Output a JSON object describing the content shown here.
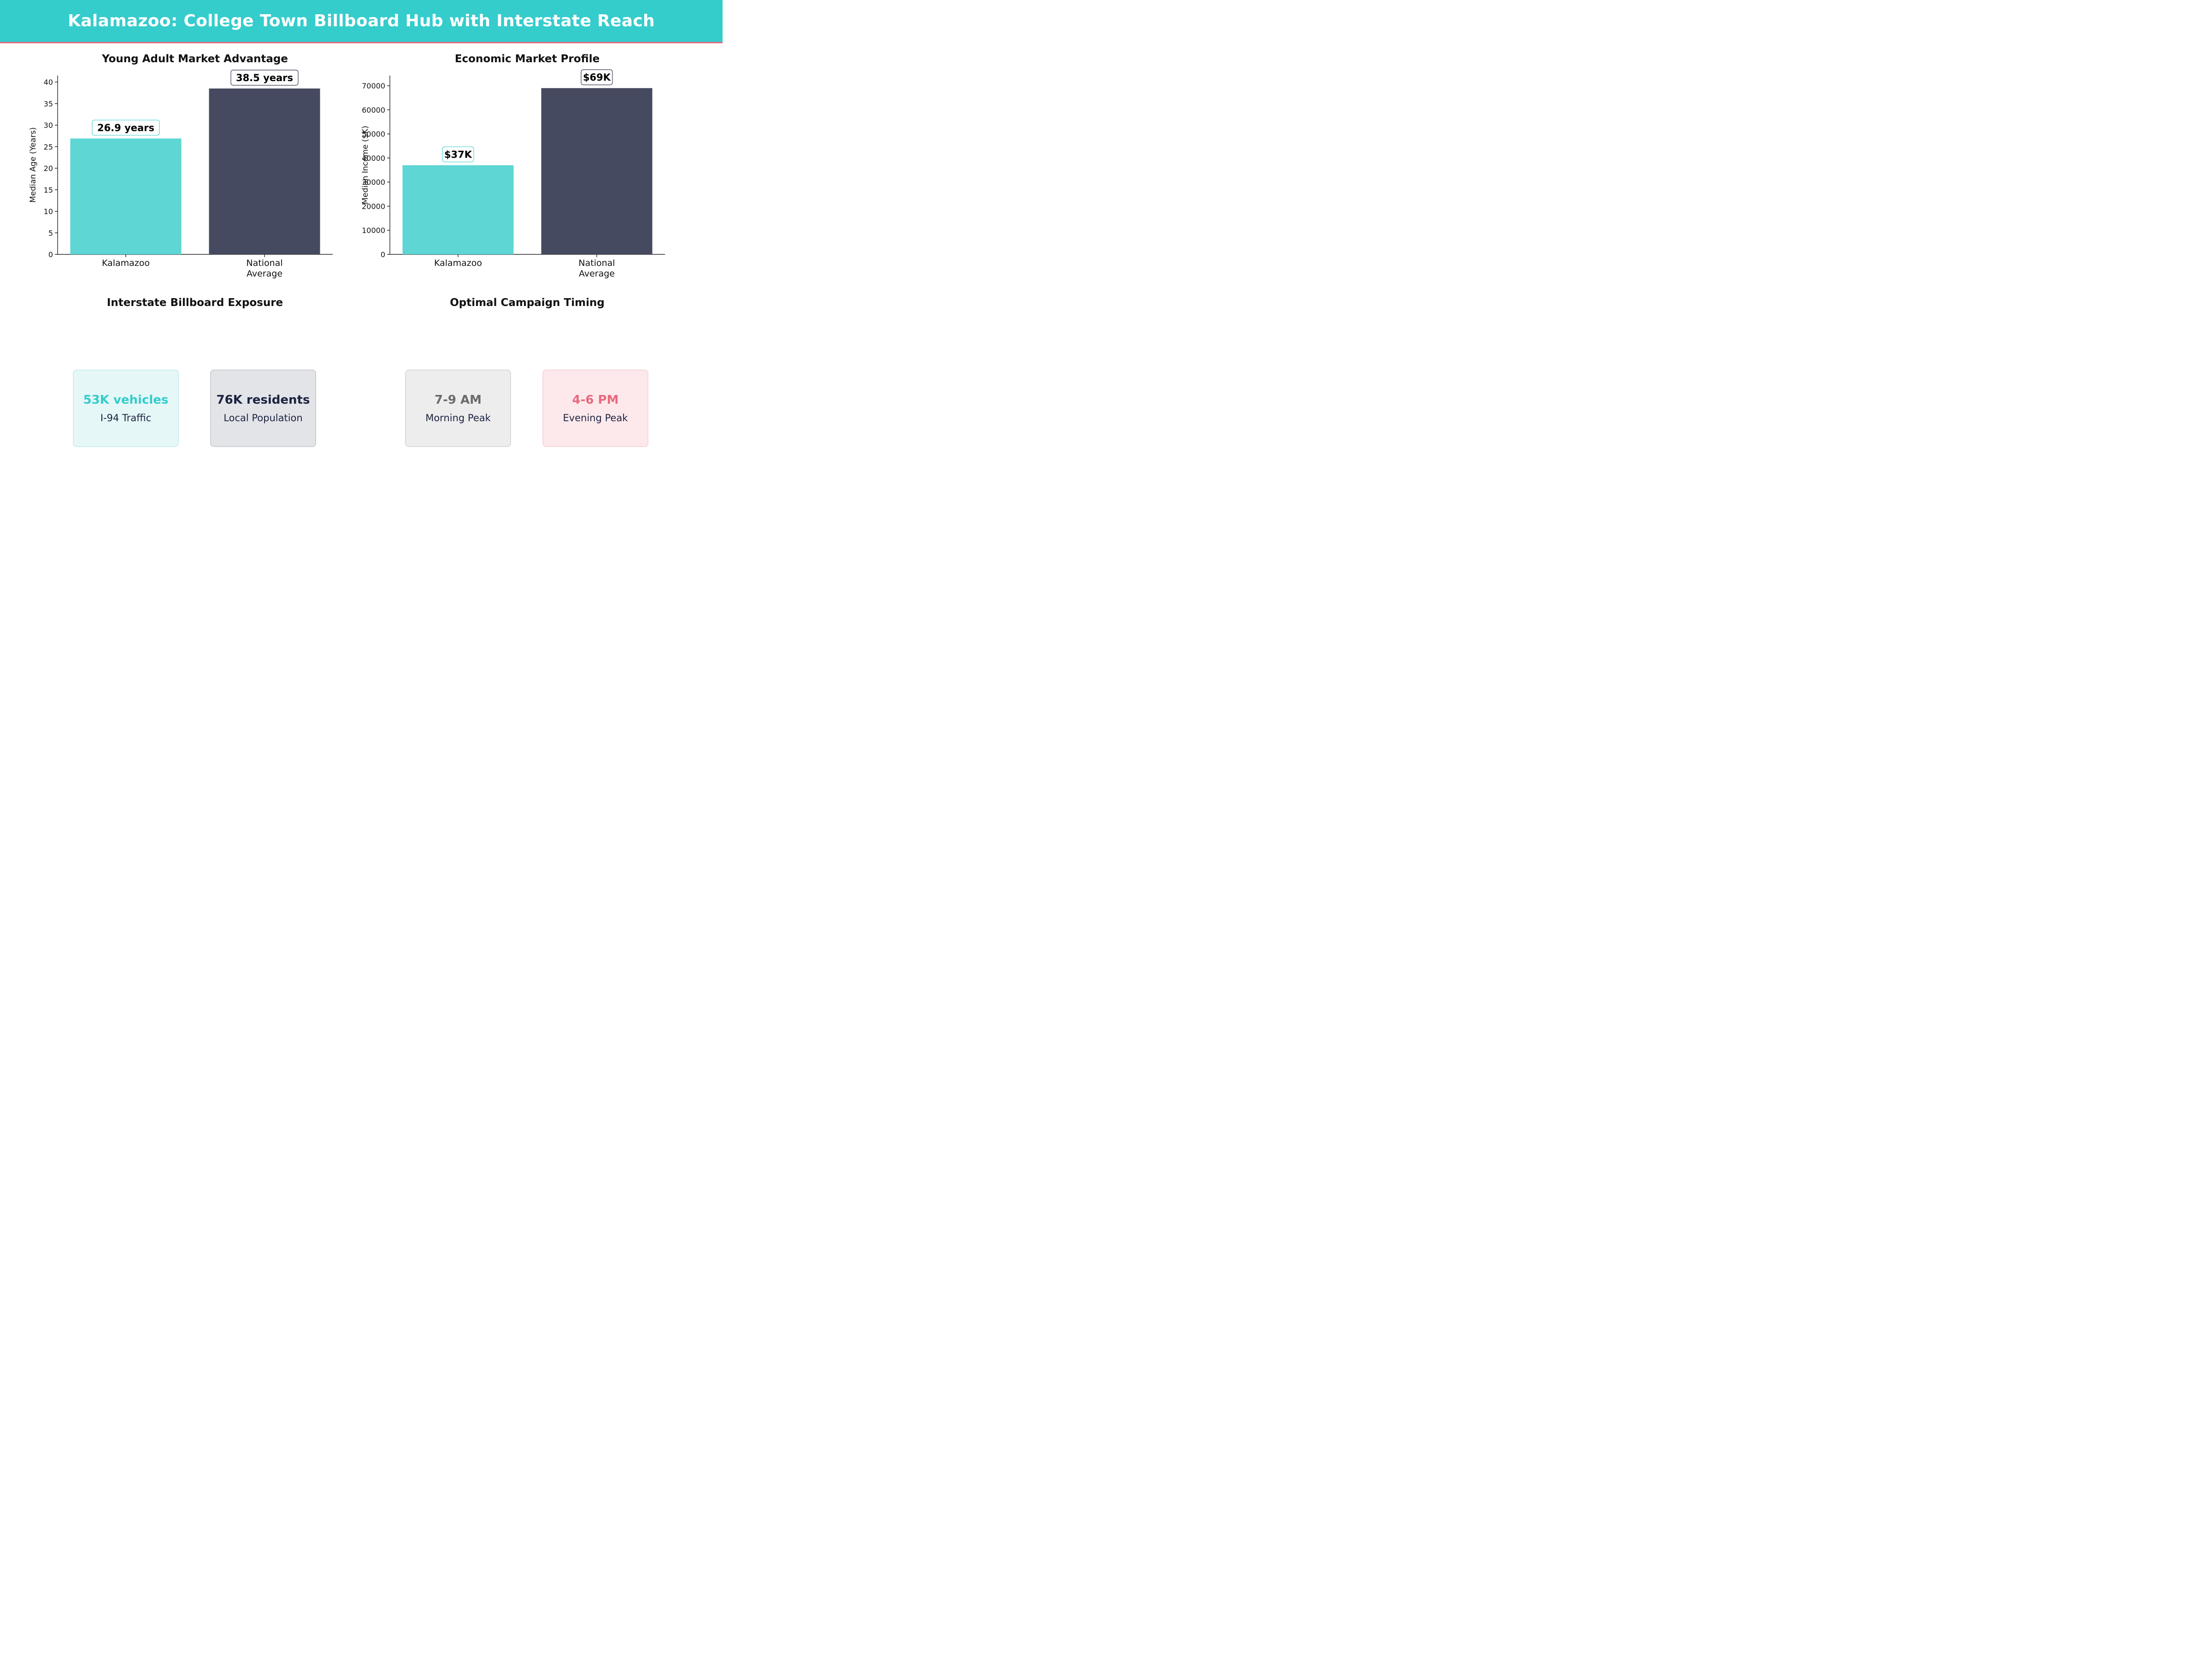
{
  "header": {
    "title": "Kalamazoo: College Town Billboard Hub with Interstate Reach"
  },
  "colors": {
    "accent": "#35cccc",
    "accent_bar": "#5dd6d4",
    "dark": "#464a60",
    "pink": "#e86a7e",
    "gray": "#6b6b6b"
  },
  "chart_data": [
    {
      "type": "bar",
      "title": "Young Adult Market Advantage",
      "ylabel": "Median Age (Years)",
      "categories": [
        "Kalamazoo",
        "National\nAverage"
      ],
      "values": [
        26.9,
        38.5
      ],
      "data_labels": [
        "26.9 years",
        "38.5 years"
      ],
      "ylim": [
        0,
        41.5
      ],
      "yticks": [
        0,
        5,
        10,
        15,
        20,
        25,
        30,
        35,
        40
      ],
      "bar_colors": [
        "#5dd6d4",
        "#464a60"
      ],
      "label_box_colors": [
        "#5dd6d4",
        "#464a60"
      ]
    },
    {
      "type": "bar",
      "title": "Economic Market Profile",
      "ylabel": "Median Income ($K)",
      "categories": [
        "Kalamazoo",
        "National\nAverage"
      ],
      "values": [
        37000,
        69000
      ],
      "data_labels": [
        "$37K",
        "$69K"
      ],
      "ylim": [
        0,
        74200
      ],
      "yticks": [
        0,
        10000,
        20000,
        30000,
        40000,
        50000,
        60000,
        70000
      ],
      "bar_colors": [
        "#5dd6d4",
        "#464a60"
      ],
      "label_box_colors": [
        "#5dd6d4",
        "#464a60"
      ]
    }
  ],
  "exposure": {
    "title": "Interstate Billboard Exposure",
    "cards": [
      {
        "value": "53K vehicles",
        "label": "I-94 Traffic"
      },
      {
        "value": "76K residents",
        "label": "Local Population"
      }
    ]
  },
  "timing": {
    "title": "Optimal Campaign Timing",
    "cards": [
      {
        "value": "7-9 AM",
        "label": "Morning Peak"
      },
      {
        "value": "4-6 PM",
        "label": "Evening Peak"
      }
    ]
  }
}
